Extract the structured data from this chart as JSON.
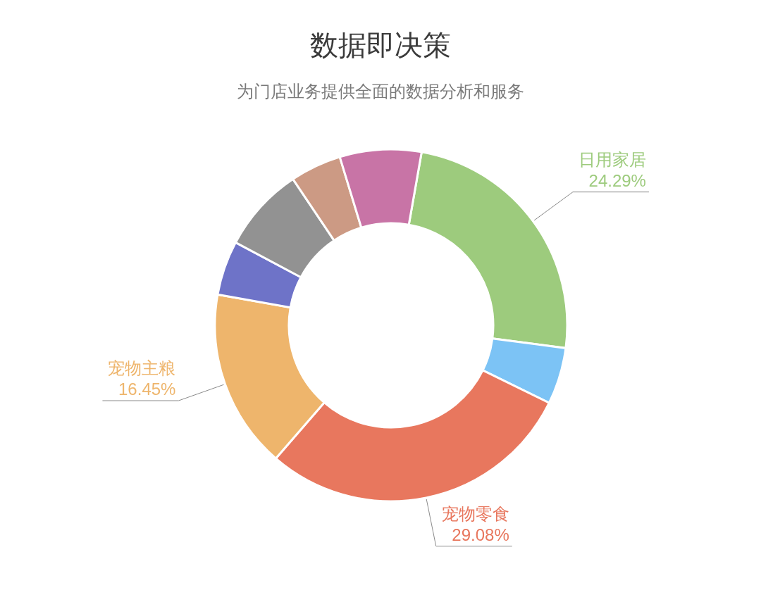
{
  "chart_data": {
    "type": "donut",
    "title": "数据即决策",
    "subtitle": "为门店业务提供全面的数据分析和服务",
    "categories": [
      "日用家居",
      null,
      "宠物零食",
      "宠物主粮",
      null,
      null,
      null,
      null
    ],
    "values": [
      24.29,
      5.2,
      29.08,
      16.45,
      5.0,
      7.8,
      4.7,
      7.48
    ],
    "colors": [
      "#9dcb7d",
      "#7cc3f5",
      "#e8775e",
      "#eeb56c",
      "#6e73c8",
      "#929292",
      "#cc9a84",
      "#c874a6"
    ],
    "value_labels": [
      "24.29%",
      null,
      "29.08%",
      "16.45%",
      null,
      null,
      null,
      null
    ]
  }
}
